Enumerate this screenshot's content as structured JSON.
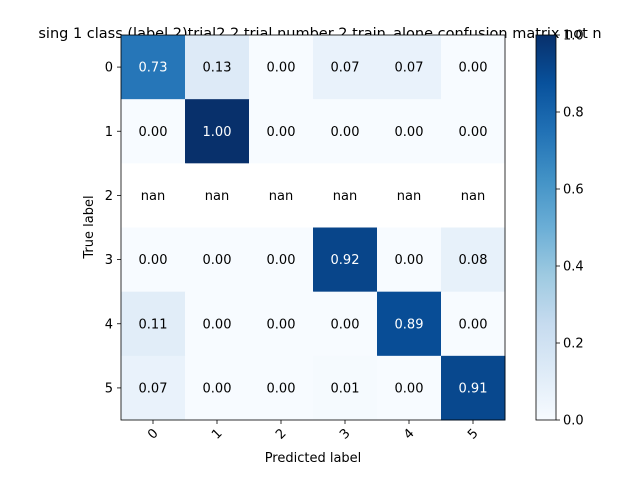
{
  "chart_data": {
    "type": "heatmap",
    "title": "sing 1 class (label 2)trial2 2 trial number 2 train_alone confusion matrix not n",
    "xlabel": "Predicted label",
    "ylabel": "True label",
    "x_categories": [
      "0",
      "1",
      "2",
      "3",
      "4",
      "5"
    ],
    "y_categories": [
      "0",
      "1",
      "2",
      "3",
      "4",
      "5"
    ],
    "values": [
      [
        0.73,
        0.13,
        0.0,
        0.07,
        0.07,
        0.0
      ],
      [
        0.0,
        1.0,
        0.0,
        0.0,
        0.0,
        0.0
      ],
      [
        null,
        null,
        null,
        null,
        null,
        null
      ],
      [
        0.0,
        0.0,
        0.0,
        0.92,
        0.0,
        0.08
      ],
      [
        0.11,
        0.0,
        0.0,
        0.0,
        0.89,
        0.0
      ],
      [
        0.07,
        0.0,
        0.0,
        0.01,
        0.0,
        0.91
      ]
    ],
    "labels": [
      [
        "0.73",
        "0.13",
        "0.00",
        "0.07",
        "0.07",
        "0.00"
      ],
      [
        "0.00",
        "1.00",
        "0.00",
        "0.00",
        "0.00",
        "0.00"
      ],
      [
        "nan",
        "nan",
        "nan",
        "nan",
        "nan",
        "nan"
      ],
      [
        "0.00",
        "0.00",
        "0.00",
        "0.92",
        "0.00",
        "0.08"
      ],
      [
        "0.11",
        "0.00",
        "0.00",
        "0.00",
        "0.89",
        "0.00"
      ],
      [
        "0.07",
        "0.00",
        "0.00",
        "0.01",
        "0.00",
        "0.91"
      ]
    ],
    "colormap": "Blues",
    "colorbar": {
      "range": [
        0.0,
        1.0
      ],
      "ticks": [
        0.0,
        0.2,
        0.4,
        0.6,
        0.8,
        1.0
      ],
      "tick_labels": [
        "0.0",
        "0.2",
        "0.4",
        "0.6",
        "0.8",
        "1.0"
      ]
    },
    "x_tick_rotation": 45
  }
}
